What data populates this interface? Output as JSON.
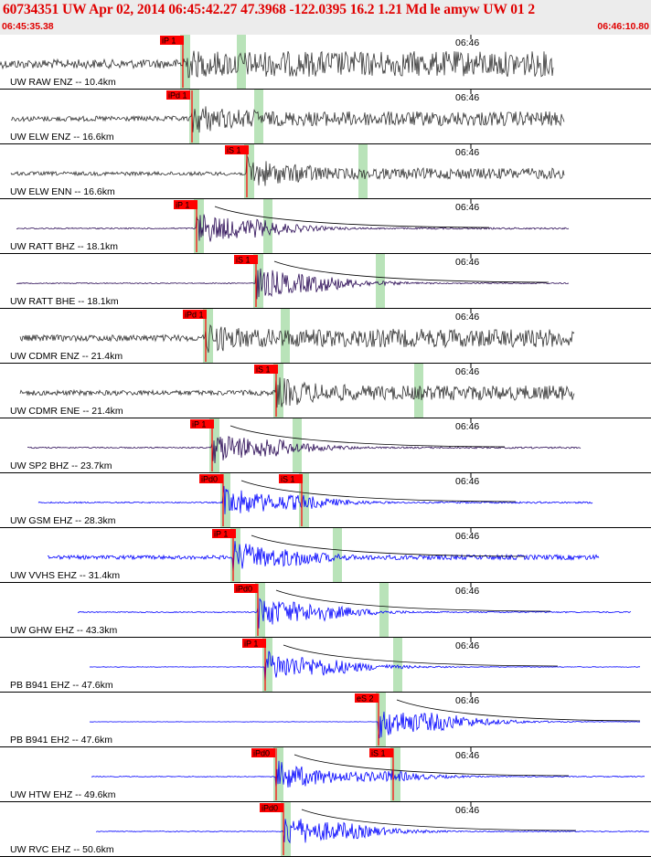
{
  "header": {
    "title": "60734351 UW Apr 02, 2014 06:45:42.27    47.3968 -122.0395 16.2 1.21 Md le amyw UW 01   2",
    "time_start": "06:45:35.38",
    "time_end": "06:46:10.80",
    "tick_label": "06:46"
  },
  "colors": {
    "header_text": "#e00000",
    "header_bg": "#ececec",
    "pick_box": "#ff0000",
    "pick_line": "#ff0000",
    "phase_window": "#b9e3b9",
    "trace_gray": "#333333",
    "trace_darkblue": "#2a0a55",
    "trace_blue": "#0000ff",
    "decay_curve": "#000000",
    "decay_curve_red": "#cc0000"
  },
  "traces": [
    {
      "label": "UW RAW ENZ -- 10.4km",
      "color": "gray",
      "x_start": 0,
      "x_end": 605,
      "amp": 14,
      "onset": 200,
      "picks": [
        {
          "text": "iP 1",
          "x": 175,
          "line": 200
        }
      ]
    },
    {
      "label": "UW ELW ENZ -- 16.6km",
      "color": "gray",
      "x_start": 12,
      "x_end": 617,
      "amp": 8,
      "onset": 210,
      "picks": [
        {
          "text": "iPd 1",
          "x": 182,
          "line": 210
        }
      ]
    },
    {
      "label": "UW ELW ENN -- 16.6km",
      "color": "gray",
      "x_start": 12,
      "x_end": 617,
      "amp": 6,
      "onset": 270,
      "picks": [
        {
          "text": "iS 1",
          "x": 246,
          "line": 270
        }
      ]
    },
    {
      "label": "UW RATT BHZ -- 18.1km",
      "color": "darkblue",
      "x_start": 18,
      "x_end": 622,
      "amp": 2,
      "onset": 215,
      "picks": [
        {
          "text": "iP 1",
          "x": 190,
          "line": 215
        }
      ]
    },
    {
      "label": "UW RATT BHE -- 18.1km",
      "color": "darkblue",
      "x_start": 18,
      "x_end": 622,
      "amp": 1.5,
      "onset": 280,
      "picks": [
        {
          "text": "iS 1",
          "x": 256,
          "line": 280
        }
      ]
    },
    {
      "label": "UW CDMR ENZ -- 21.4km",
      "color": "gray",
      "x_start": 22,
      "x_end": 628,
      "amp": 10,
      "onset": 225,
      "picks": [
        {
          "text": "iPd 1",
          "x": 200,
          "line": 225
        }
      ]
    },
    {
      "label": "UW CDMR ENE -- 21.4km",
      "color": "gray",
      "x_start": 22,
      "x_end": 628,
      "amp": 8,
      "onset": 302,
      "picks": [
        {
          "text": "iS 1",
          "x": 278,
          "line": 302
        }
      ]
    },
    {
      "label": "UW SP2 BHZ -- 23.7km",
      "color": "darkblue",
      "x_start": 30,
      "x_end": 635,
      "amp": 2,
      "onset": 232,
      "picks": [
        {
          "text": "iP 1",
          "x": 208,
          "line": 232
        }
      ]
    },
    {
      "label": "UW GSM EHZ -- 28.3km",
      "color": "blue",
      "x_start": 42,
      "x_end": 648,
      "amp": 2,
      "onset": 244,
      "picks": [
        {
          "text": "iPd0",
          "x": 218,
          "line": 244
        },
        {
          "text": "iS 1",
          "x": 305,
          "line": 330
        }
      ]
    },
    {
      "label": "UW VVHS EHZ -- 31.4km",
      "color": "blue",
      "x_start": 52,
      "x_end": 655,
      "amp": 6,
      "onset": 255,
      "picks": [
        {
          "text": "iP 1",
          "x": 232,
          "line": 255
        }
      ]
    },
    {
      "label": "UW GHW EHZ -- 43.3km",
      "color": "blue",
      "x_start": 85,
      "x_end": 690,
      "amp": 1.5,
      "onset": 282,
      "picks": [
        {
          "text": "iPd0",
          "x": 256,
          "line": 282
        }
      ]
    },
    {
      "label": "PB B941 EHZ -- 47.6km",
      "color": "blue",
      "x_start": 98,
      "x_end": 700,
      "amp": 0.8,
      "onset": 290,
      "picks": [
        {
          "text": "iP 1",
          "x": 265,
          "line": 290
        }
      ]
    },
    {
      "label": "PB B941 EH2 -- 47.6km",
      "color": "blue",
      "x_start": 98,
      "x_end": 700,
      "amp": 0.6,
      "onset": 414,
      "picks": [
        {
          "text": "eS 2",
          "x": 388,
          "line": 414
        }
      ]
    },
    {
      "label": "UW HTW EHZ -- 49.6km",
      "color": "blue",
      "x_start": 100,
      "x_end": 705,
      "amp": 1.2,
      "onset": 302,
      "picks": [
        {
          "text": "iPd0",
          "x": 275,
          "line": 302
        },
        {
          "text": "iS 1",
          "x": 404,
          "line": 430
        }
      ]
    },
    {
      "label": "UW RVC EHZ -- 50.6km",
      "color": "blue",
      "x_start": 105,
      "x_end": 710,
      "amp": 1.2,
      "onset": 310,
      "picks": [
        {
          "text": "iPd0",
          "x": 284,
          "line": 310
        }
      ]
    }
  ]
}
